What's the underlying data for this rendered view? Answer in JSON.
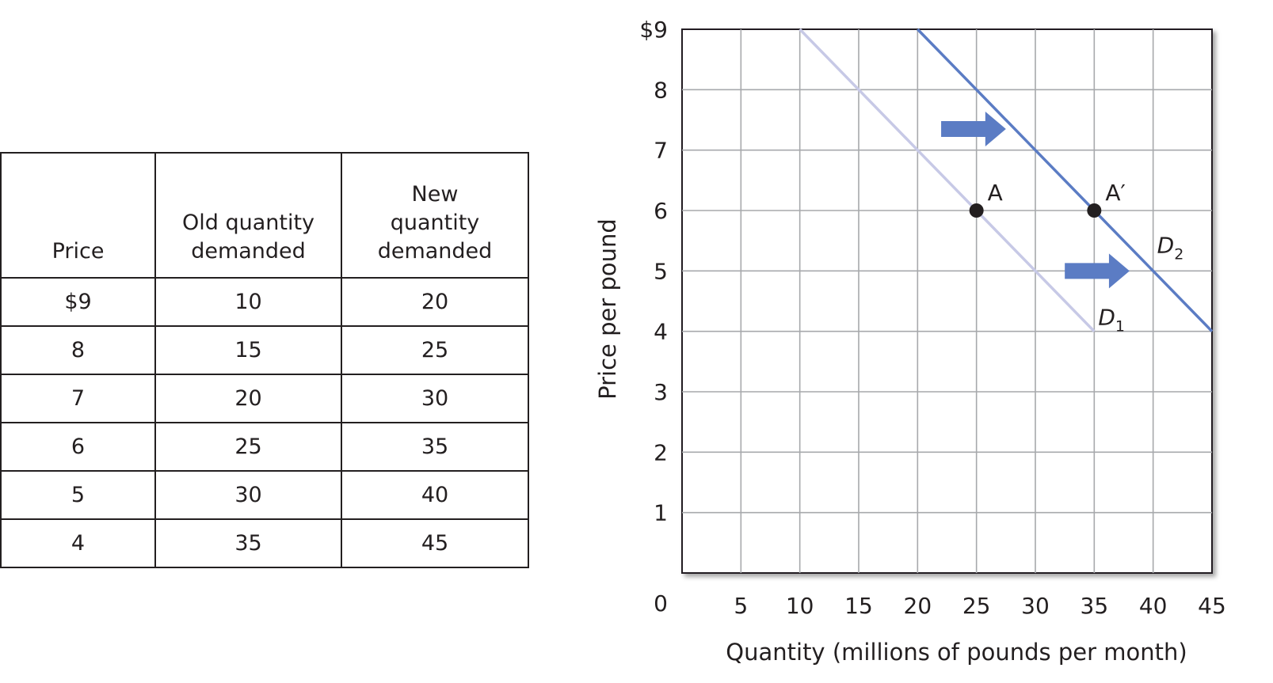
{
  "table": {
    "headers": [
      "Price",
      "Old quantity demanded",
      "New quantity demanded"
    ],
    "rows": [
      [
        "$9",
        "10",
        "20"
      ],
      [
        "8",
        "15",
        "25"
      ],
      [
        "7",
        "20",
        "30"
      ],
      [
        "6",
        "25",
        "35"
      ],
      [
        "5",
        "30",
        "40"
      ],
      [
        "4",
        "35",
        "45"
      ]
    ]
  },
  "chart_data": {
    "type": "line",
    "xlabel": "Quantity (millions of pounds per month)",
    "ylabel": "Price per pound",
    "xlim": [
      0,
      45
    ],
    "ylim": [
      0,
      9
    ],
    "x_ticks": [
      "5",
      "10",
      "15",
      "20",
      "25",
      "30",
      "35",
      "40",
      "45"
    ],
    "y_ticks": [
      "1",
      "2",
      "3",
      "4",
      "5",
      "6",
      "7",
      "8",
      "$9"
    ],
    "origin_label": "0",
    "grid": true,
    "series": [
      {
        "name": "D1",
        "label_main": "D",
        "label_sub": "1",
        "color": "#c7c9e6",
        "points": [
          [
            10,
            9
          ],
          [
            15,
            8
          ],
          [
            20,
            7
          ],
          [
            25,
            6
          ],
          [
            30,
            5
          ],
          [
            35,
            4
          ]
        ]
      },
      {
        "name": "D2",
        "label_main": "D",
        "label_sub": "2",
        "color": "#5b7cc4",
        "points": [
          [
            20,
            9
          ],
          [
            25,
            8
          ],
          [
            30,
            7
          ],
          [
            35,
            6
          ],
          [
            40,
            5
          ],
          [
            45,
            4
          ]
        ]
      }
    ],
    "points": [
      {
        "label": "A",
        "x": 25,
        "y": 6
      },
      {
        "label": "A′",
        "x": 35,
        "y": 6
      }
    ],
    "arrows": [
      {
        "x_from": 22,
        "x_to": 27.5,
        "y": 7.35
      },
      {
        "x_from": 32.5,
        "x_to": 38,
        "y": 5.0
      }
    ],
    "arrow_color": "#5b7cc4"
  }
}
